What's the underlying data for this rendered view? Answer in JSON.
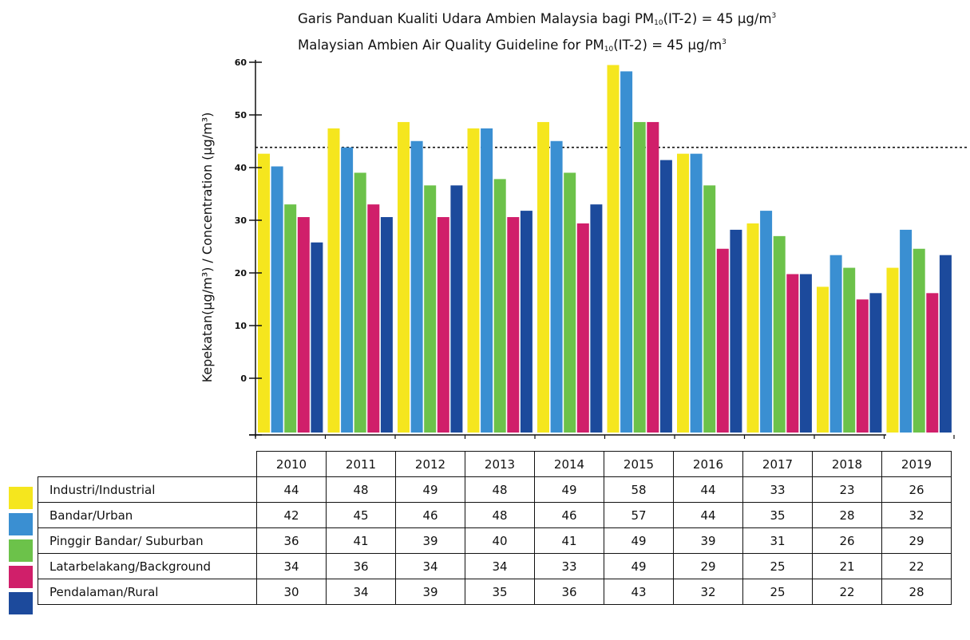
{
  "title_lines": {
    "line1": {
      "prefix": "Garis Panduan Kualiti Udara Ambien Malaysia bagi PM",
      "sub": "10",
      "suffix": "(IT-2) = 45 µg/m",
      "sup": "3"
    },
    "line2": {
      "prefix": "Malaysian Ambien Air Quality Guideline for PM",
      "sub": "10",
      "suffix": "(IT-2) = 45 µg/m",
      "sup": "3"
    }
  },
  "chart_data": {
    "type": "bar",
    "title": "Garis Panduan Kualiti Udara Ambien Malaysia bagi PM10(IT-2) = 45 µg/m3 / Malaysian Ambien Air Quality Guideline for PM10(IT-2) = 45 µg/m3",
    "ylabel": "Kepekatan(µg/m³) / Concentration (µg/m³)",
    "xlabel": "",
    "categories": [
      "2010",
      "2011",
      "2012",
      "2013",
      "2014",
      "2015",
      "2016",
      "2017",
      "2018",
      "2019"
    ],
    "y_ticks": [
      "60",
      "50",
      "40",
      "30",
      "20",
      "10",
      "0"
    ],
    "guideline": 45,
    "series": [
      {
        "name": "Industri/Industrial",
        "color": "#f5e61e",
        "values": [
          44,
          48,
          49,
          48,
          49,
          58,
          44,
          33,
          23,
          26
        ]
      },
      {
        "name": "Bandar/Urban",
        "color": "#3a8fd2",
        "values": [
          42,
          45,
          46,
          48,
          46,
          57,
          44,
          35,
          28,
          32
        ]
      },
      {
        "name": "Pinggir Bandar/ Suburban",
        "color": "#6cc24a",
        "values": [
          36,
          41,
          39,
          40,
          41,
          49,
          39,
          31,
          26,
          29
        ]
      },
      {
        "name": "Latarbelakang/Background",
        "color": "#d01f6a",
        "values": [
          34,
          36,
          34,
          34,
          33,
          49,
          29,
          25,
          21,
          22
        ]
      },
      {
        "name": "Pendalaman/Rural",
        "color": "#1c4a9c",
        "values": [
          30,
          34,
          39,
          35,
          36,
          43,
          32,
          25,
          22,
          28
        ]
      }
    ],
    "grid": false,
    "legend": "table-below"
  }
}
